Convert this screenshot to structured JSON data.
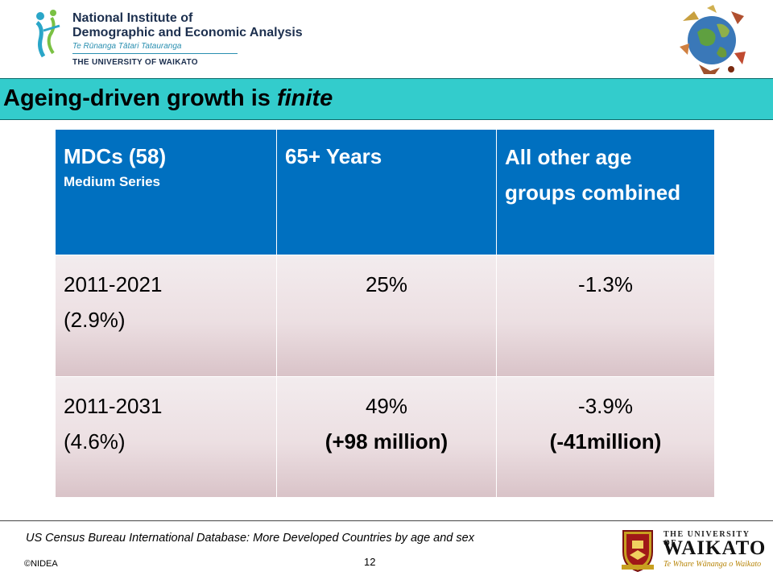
{
  "header": {
    "org_line1": "National Institute of",
    "org_line2": "Demographic and Economic Analysis",
    "org_maori": "Te Rūnanga Tātari Tatauranga",
    "org_university": "THE UNIVERSITY OF WAIKATO"
  },
  "title": {
    "prefix": "Ageing-driven growth is ",
    "emphasis": "finite"
  },
  "table": {
    "header": {
      "col1": "MDCs (58)",
      "col1_sub": "Medium Series",
      "col2": "65+ Years",
      "col3": "All other age groups combined"
    },
    "rows": [
      {
        "period": "2011-2021",
        "period_growth": "(2.9%)",
        "elderly": "25%",
        "elderly_abs": "",
        "other": "-1.3%",
        "other_abs": ""
      },
      {
        "period": "2011-2031",
        "period_growth": "(4.6%)",
        "elderly": "49%",
        "elderly_abs": "(+98 million)",
        "other": "-3.9%",
        "other_abs": "(-41million)"
      }
    ]
  },
  "footer": {
    "source": "US Census Bureau International Database: More Developed Countries by age and sex",
    "copyright": "©NIDEA",
    "page_number": "12",
    "waikato_line1": "THE UNIVERSITY OF",
    "waikato_line2": "WAIKATO",
    "waikato_line3": "Te Whare Wānanga o Waikato"
  },
  "colors": {
    "title_band": "#33cccc",
    "table_header": "#0070c0"
  }
}
